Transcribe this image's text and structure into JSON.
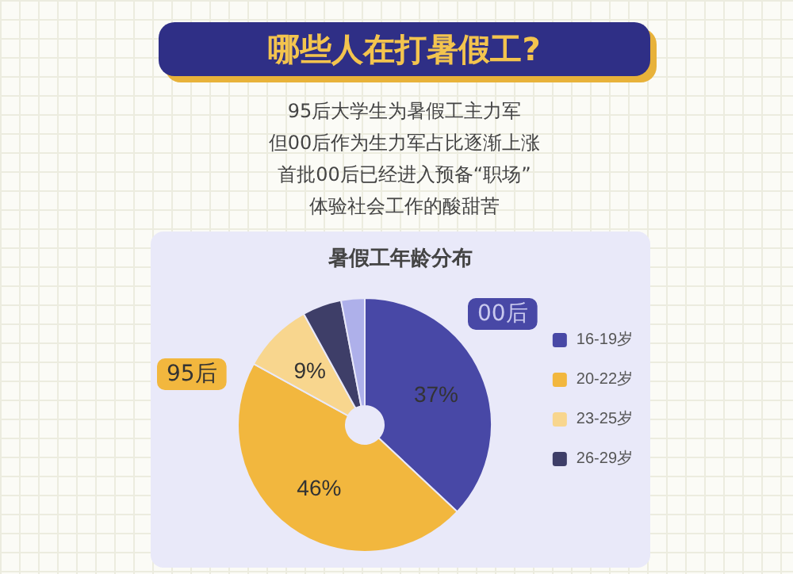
{
  "chart_data": {
    "type": "donut",
    "title": "暑假工年龄分布",
    "subtitle": "哪些人在打暑假工?",
    "annotations": [
      "95后",
      "00后",
      "95后大学生为暑假工主力军",
      "但00后作为生力军占比逐渐上涨",
      "首批00后已经进入预备“职场”",
      "体验社会工作的酸甜苦"
    ],
    "categories": [
      "16-19岁",
      "20-22岁",
      "23-25岁",
      "26-29岁",
      null
    ],
    "values": [
      37,
      46,
      9,
      5,
      3
    ],
    "colors": [
      "#4848a6",
      "#f2b73e",
      "#f8d68e",
      "#3e3e68",
      "#aeb0ea"
    ],
    "value_labels": [
      "37%",
      "46%",
      "9%",
      null,
      null
    ],
    "legend": "right"
  }
}
